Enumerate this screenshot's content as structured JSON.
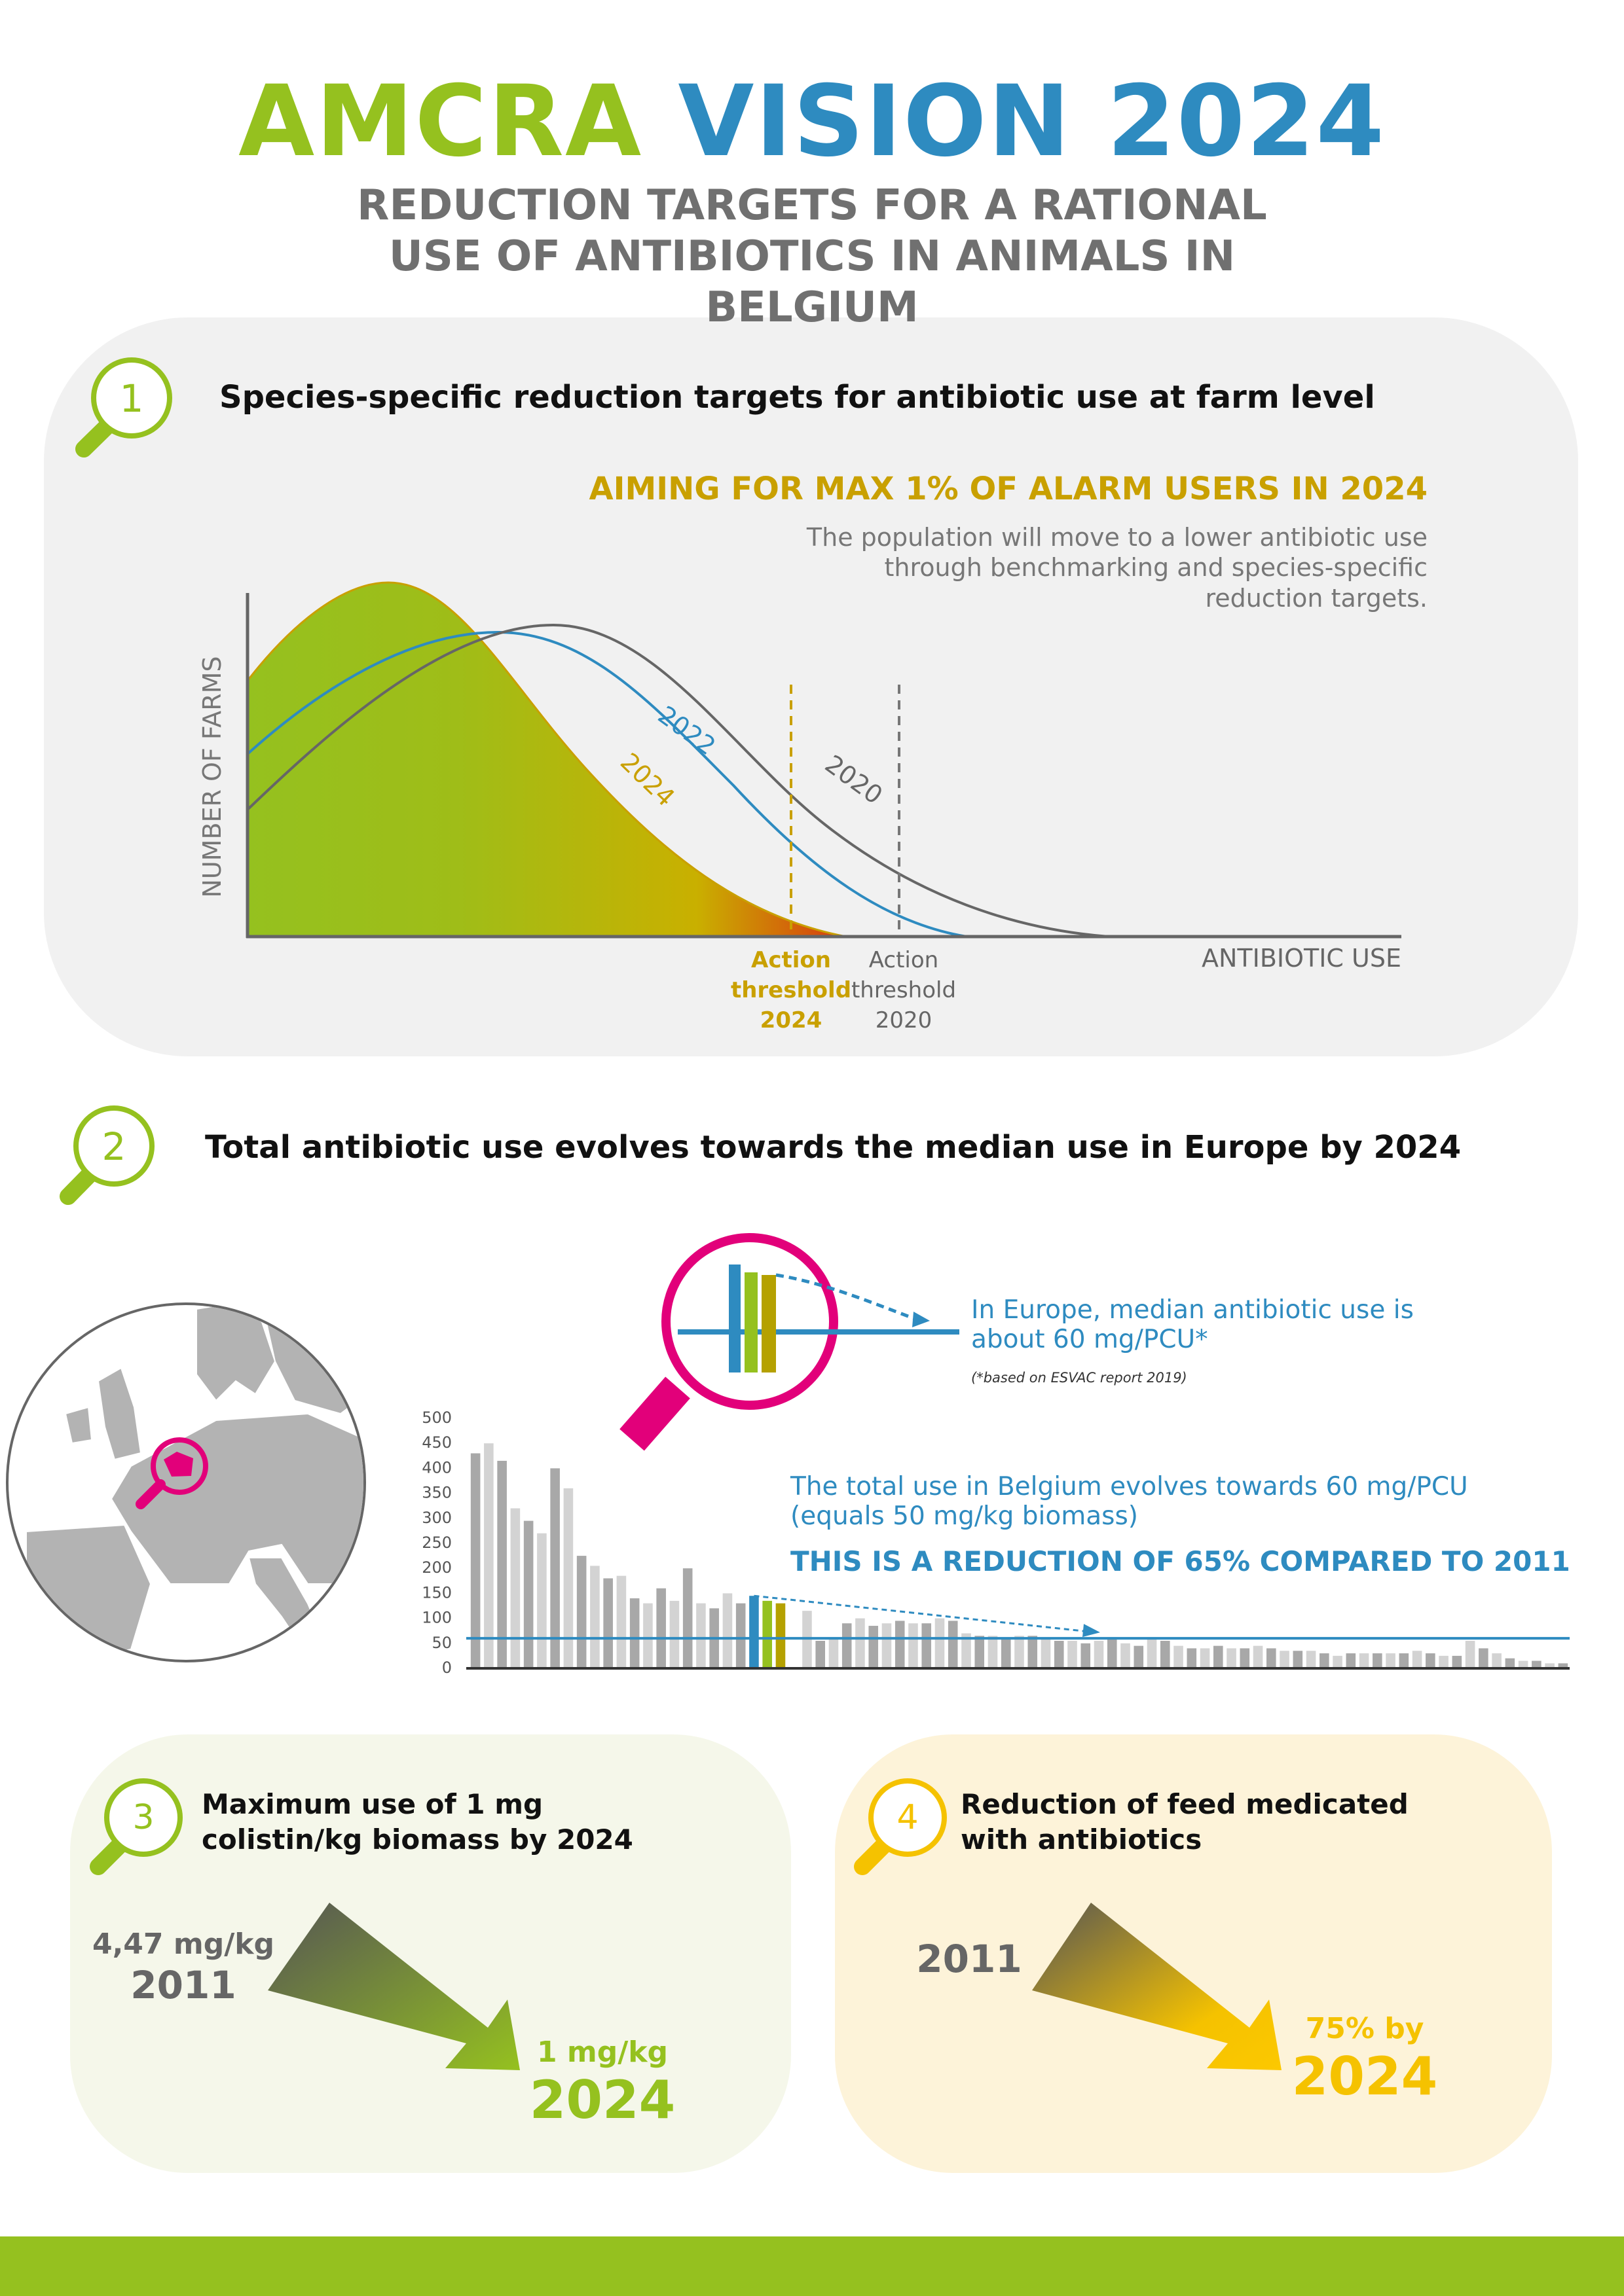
{
  "header": {
    "title_part1": "AMCRA",
    "title_part2": "VISION 2024",
    "subtitle": "REDUCTION TARGETS FOR A RATIONAL USE OF ANTIBIOTICS IN ANIMALS IN BELGIUM"
  },
  "section1": {
    "number": "1",
    "heading": "Species-specific reduction targets for antibiotic use at farm level",
    "aim": "AIMING FOR MAX 1% OF ALARM USERS IN 2024",
    "description": "The population will move to a lower antibiotic use through benchmarking and species-specific reduction targets.",
    "y_axis_label": "NUMBER OF FARMS",
    "x_axis_label": "ANTIBIOTIC USE",
    "curve_2022": "2022",
    "curve_2020": "2020",
    "curve_2024": "2024",
    "threshold_2024": "Action threshold 2024",
    "threshold_2020": "Action threshold 2020"
  },
  "section2": {
    "number": "2",
    "heading": "Total antibiotic use evolves towards the median use in Europe by 2024",
    "europe_note": "In Europe,  median antibiotic use is about 60 mg/PCU*",
    "source_note": "(*based on ESVAC report 2019)",
    "belgium_note": "The total use in Belgium evolves towards 60 mg/PCU (equals 50 mg/kg biomass)",
    "reduction": "THIS IS A REDUCTION OF 65% COMPARED TO 2011",
    "chart": {
      "type": "bar",
      "ylim": [
        0,
        500
      ],
      "yticks": [
        0,
        50,
        100,
        150,
        200,
        250,
        300,
        350,
        400,
        450,
        500
      ],
      "target": 60,
      "target_color": "#2e8bc0",
      "values": [
        430,
        450,
        415,
        320,
        295,
        270,
        400,
        360,
        225,
        205,
        180,
        185,
        140,
        130,
        160,
        135,
        200,
        130,
        120,
        150,
        130,
        145,
        135,
        130,
        null,
        115,
        55,
        60,
        90,
        100,
        85,
        90,
        95,
        90,
        90,
        100,
        95,
        70,
        65,
        65,
        60,
        65,
        65,
        60,
        55,
        55,
        50,
        55,
        60,
        50,
        45,
        60,
        55,
        45,
        40,
        40,
        45,
        40,
        40,
        45,
        40,
        35,
        35,
        35,
        30,
        25,
        30,
        30,
        30,
        30,
        30,
        35,
        30,
        25,
        25,
        55,
        40,
        30,
        20,
        15,
        15,
        10,
        10
      ],
      "colors": [
        "#a8a8a8",
        "#d3d3d3",
        "#a8a8a8",
        "#d3d3d3",
        "#a8a8a8",
        "#d3d3d3",
        "#a8a8a8",
        "#d3d3d3",
        "#a8a8a8",
        "#d3d3d3",
        "#a8a8a8",
        "#d3d3d3",
        "#a8a8a8",
        "#d3d3d3",
        "#a8a8a8",
        "#d3d3d3",
        "#a8a8a8",
        "#d3d3d3",
        "#a8a8a8",
        "#d3d3d3",
        "#a8a8a8",
        "#2e8bc0",
        "#95c11f",
        "#b5a100",
        null,
        "#d3d3d3",
        "#a8a8a8",
        "#d3d3d3",
        "#a8a8a8",
        "#d3d3d3",
        "#a8a8a8",
        "#d3d3d3",
        "#a8a8a8",
        "#d3d3d3",
        "#a8a8a8",
        "#d3d3d3",
        "#a8a8a8",
        "#d3d3d3",
        "#a8a8a8",
        "#d3d3d3",
        "#a8a8a8",
        "#d3d3d3",
        "#a8a8a8",
        "#d3d3d3",
        "#a8a8a8",
        "#d3d3d3",
        "#a8a8a8",
        "#d3d3d3",
        "#a8a8a8",
        "#d3d3d3",
        "#a8a8a8",
        "#d3d3d3",
        "#a8a8a8",
        "#d3d3d3",
        "#a8a8a8",
        "#d3d3d3",
        "#a8a8a8",
        "#d3d3d3",
        "#a8a8a8",
        "#d3d3d3",
        "#a8a8a8",
        "#d3d3d3",
        "#a8a8a8",
        "#d3d3d3",
        "#a8a8a8",
        "#d3d3d3",
        "#a8a8a8",
        "#d3d3d3",
        "#a8a8a8",
        "#d3d3d3",
        "#a8a8a8",
        "#d3d3d3",
        "#a8a8a8",
        "#d3d3d3",
        "#a8a8a8",
        "#d3d3d3",
        "#a8a8a8",
        "#d3d3d3",
        "#a8a8a8",
        "#d3d3d3",
        "#a8a8a8",
        "#d3d3d3",
        "#a8a8a8"
      ]
    }
  },
  "section3": {
    "number": "3",
    "heading": "Maximum use of 1 mg colistin/kg biomass by 2024",
    "start_value": "4,47 mg/kg",
    "start_year": "2011",
    "end_value": "1 mg/kg",
    "end_year": "2024"
  },
  "section4": {
    "number": "4",
    "heading": "Reduction of feed medicated with antibiotics",
    "start_year": "2011",
    "end_value": "75% by",
    "end_year": "2024"
  }
}
